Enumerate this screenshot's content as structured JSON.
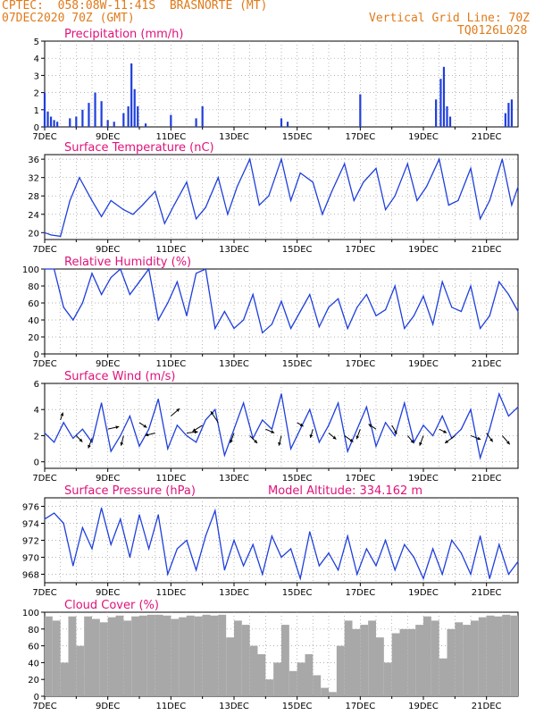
{
  "header": {
    "line1_left": "CPTEC:  058:08W-11:41S  BRASNORTE (MT)",
    "line2_left": "07DEC2020 70Z (GMT)",
    "line1_right": "Vertical Grid Line: 70Z",
    "line2_right": "TQ0126L028"
  },
  "colors": {
    "series": "#1f3fdc",
    "cloud": "#a8a8a8",
    "arrow": "#000000",
    "title": "#e0127a",
    "header": "#e07a1a"
  },
  "chart_data": [
    {
      "type": "bar",
      "title": "Precipitation (mm/h)",
      "xlabel": "",
      "ylabel": "",
      "x_range_days": [
        7,
        22
      ],
      "xticks": [
        "7DEC",
        "9DEC",
        "11DEC",
        "13DEC",
        "15DEC",
        "17DEC",
        "19DEC",
        "21DEC"
      ],
      "ylim": [
        0,
        5
      ],
      "yticks": [
        0,
        1,
        2,
        3,
        4,
        5
      ],
      "grid": true,
      "x": [
        7.0,
        7.1,
        7.2,
        7.3,
        7.4,
        7.8,
        8.0,
        8.2,
        8.4,
        8.6,
        8.8,
        9.0,
        9.2,
        9.5,
        9.65,
        9.75,
        9.85,
        9.95,
        10.2,
        11.0,
        11.8,
        12.0,
        14.5,
        14.7,
        17.0,
        19.4,
        19.55,
        19.65,
        19.75,
        19.85,
        21.6,
        21.7,
        21.8
      ],
      "values": [
        2.0,
        0.9,
        0.6,
        0.4,
        0.3,
        0.5,
        0.6,
        1.0,
        1.4,
        2.0,
        1.5,
        0.4,
        0.3,
        0.8,
        1.2,
        3.7,
        2.2,
        1.2,
        0.2,
        0.7,
        0.5,
        1.2,
        0.5,
        0.3,
        1.9,
        1.6,
        2.8,
        3.5,
        1.2,
        0.6,
        0.8,
        1.4,
        1.6
      ]
    },
    {
      "type": "line",
      "title": "Surface Temperature (nC)",
      "xlabel": "",
      "ylabel": "",
      "x_range_days": [
        7,
        22
      ],
      "xticks": [
        "7DEC",
        "9DEC",
        "11DEC",
        "13DEC",
        "15DEC",
        "17DEC",
        "19DEC",
        "21DEC"
      ],
      "ylim": [
        18.5,
        37
      ],
      "yticks": [
        20,
        24,
        28,
        32,
        36
      ],
      "grid": true,
      "x": [
        7.0,
        7.2,
        7.5,
        7.8,
        8.1,
        8.5,
        8.8,
        9.1,
        9.5,
        9.8,
        10.1,
        10.5,
        10.8,
        11.1,
        11.5,
        11.8,
        12.1,
        12.5,
        12.8,
        13.1,
        13.5,
        13.8,
        14.1,
        14.5,
        14.8,
        15.1,
        15.5,
        15.8,
        16.1,
        16.5,
        16.8,
        17.1,
        17.5,
        17.8,
        18.1,
        18.5,
        18.8,
        19.1,
        19.5,
        19.8,
        20.1,
        20.5,
        20.8,
        21.1,
        21.5,
        21.8,
        22.0
      ],
      "values": [
        20,
        19.5,
        19.2,
        27,
        32,
        27,
        23.5,
        27,
        25,
        24,
        26,
        29,
        22,
        26,
        31,
        23,
        25.5,
        32,
        24,
        30,
        36,
        26,
        28,
        36,
        27,
        33,
        31,
        24,
        29,
        35,
        27,
        31,
        34,
        25,
        28,
        35,
        27,
        30,
        36,
        26,
        27,
        34,
        23,
        27,
        36,
        26,
        30
      ]
    },
    {
      "type": "line",
      "title": "Relative Humidity (%)",
      "xlabel": "",
      "ylabel": "",
      "x_range_days": [
        7,
        22
      ],
      "xticks": [
        "7DEC",
        "9DEC",
        "11DEC",
        "13DEC",
        "15DEC",
        "17DEC",
        "19DEC",
        "21DEC"
      ],
      "ylim": [
        0,
        100
      ],
      "yticks": [
        0,
        20,
        40,
        60,
        80,
        100
      ],
      "grid": true,
      "x": [
        7.0,
        7.3,
        7.6,
        7.9,
        8.2,
        8.5,
        8.8,
        9.1,
        9.4,
        9.7,
        10.0,
        10.3,
        10.6,
        10.9,
        11.2,
        11.5,
        11.8,
        12.1,
        12.4,
        12.7,
        13.0,
        13.3,
        13.6,
        13.9,
        14.2,
        14.5,
        14.8,
        15.1,
        15.4,
        15.7,
        16.0,
        16.3,
        16.6,
        16.9,
        17.2,
        17.5,
        17.8,
        18.1,
        18.4,
        18.7,
        19.0,
        19.3,
        19.6,
        19.9,
        20.2,
        20.5,
        20.8,
        21.1,
        21.4,
        21.7,
        22.0
      ],
      "values": [
        100,
        100,
        55,
        40,
        60,
        95,
        70,
        90,
        100,
        70,
        85,
        100,
        40,
        60,
        85,
        45,
        95,
        100,
        30,
        50,
        30,
        40,
        70,
        25,
        35,
        62,
        30,
        50,
        70,
        32,
        55,
        65,
        30,
        55,
        70,
        45,
        52,
        80,
        30,
        45,
        68,
        35,
        85,
        55,
        50,
        80,
        30,
        45,
        85,
        70,
        50
      ]
    },
    {
      "type": "line",
      "title": "Surface Wind (m/s)",
      "xlabel": "",
      "ylabel": "",
      "x_range_days": [
        7,
        22
      ],
      "xticks": [
        "7DEC",
        "9DEC",
        "11DEC",
        "13DEC",
        "15DEC",
        "17DEC",
        "19DEC",
        "21DEC"
      ],
      "ylim": [
        -0.5,
        6
      ],
      "yticks": [
        0,
        2,
        4,
        6
      ],
      "grid": true,
      "x": [
        7.0,
        7.3,
        7.6,
        7.9,
        8.2,
        8.5,
        8.8,
        9.1,
        9.4,
        9.7,
        10.0,
        10.3,
        10.6,
        10.9,
        11.2,
        11.5,
        11.8,
        12.1,
        12.4,
        12.7,
        13.0,
        13.3,
        13.6,
        13.9,
        14.2,
        14.5,
        14.8,
        15.1,
        15.4,
        15.7,
        16.0,
        16.3,
        16.6,
        16.9,
        17.2,
        17.5,
        17.8,
        18.1,
        18.4,
        18.7,
        19.0,
        19.3,
        19.6,
        19.9,
        20.2,
        20.5,
        20.8,
        21.1,
        21.4,
        21.7,
        22.0
      ],
      "values": [
        2.2,
        1.5,
        3.0,
        1.8,
        2.5,
        1.5,
        4.5,
        0.8,
        2.0,
        3.5,
        1.2,
        2.5,
        4.8,
        1.0,
        2.8,
        2.0,
        1.5,
        3.2,
        4.0,
        0.5,
        2.5,
        4.5,
        1.8,
        3.2,
        2.5,
        5.2,
        1.0,
        2.5,
        4.0,
        1.5,
        2.8,
        4.5,
        0.8,
        2.5,
        4.2,
        1.2,
        3.0,
        2.0,
        4.5,
        1.5,
        2.8,
        2.0,
        3.5,
        1.8,
        2.5,
        4.0,
        0.3,
        2.5,
        5.2,
        3.5,
        4.2
      ],
      "arrows": {
        "x": [
          7.5,
          8.0,
          8.5,
          9.0,
          9.5,
          10.0,
          10.5,
          11.0,
          11.5,
          12.0,
          12.5,
          13.0,
          13.5,
          14.0,
          14.5,
          15.0,
          15.5,
          16.0,
          16.5,
          17.0,
          17.5,
          18.0,
          18.5,
          19.0,
          19.5,
          20.0,
          20.5,
          21.0,
          21.5
        ],
        "y": [
          3.2,
          2.0,
          1.8,
          2.5,
          2.0,
          3.0,
          2.2,
          3.5,
          2.2,
          2.8,
          3.0,
          2.2,
          2.0,
          2.5,
          2.0,
          3.0,
          2.5,
          2.2,
          2.0,
          2.5,
          2.5,
          2.8,
          2.0,
          2.0,
          2.5,
          2.0,
          2.0,
          2.2,
          2.0
        ],
        "u": [
          0.2,
          0.5,
          -0.3,
          0.9,
          -0.2,
          0.6,
          -0.8,
          0.7,
          0.9,
          -0.8,
          -0.6,
          -0.3,
          0.6,
          0.7,
          -0.2,
          0.5,
          -0.2,
          0.6,
          0.7,
          -0.3,
          -0.6,
          0.4,
          0.5,
          -0.3,
          0.6,
          -0.8,
          0.8,
          0.5,
          0.6
        ],
        "v": [
          0.6,
          -0.5,
          -0.8,
          0.2,
          -0.8,
          -0.4,
          -0.2,
          0.6,
          0.1,
          -0.5,
          0.9,
          -0.8,
          -0.6,
          -0.3,
          -0.8,
          -0.3,
          -0.7,
          -0.5,
          -0.5,
          -0.8,
          0.4,
          -0.7,
          -0.6,
          -0.8,
          -0.3,
          -0.6,
          -0.3,
          -0.7,
          -0.7
        ]
      }
    },
    {
      "type": "line",
      "title": "Surface Pressure (hPa)",
      "annotation": "Model Altitude: 334.162 m",
      "xlabel": "",
      "ylabel": "",
      "x_range_days": [
        7,
        22
      ],
      "xticks": [
        "7DEC",
        "9DEC",
        "11DEC",
        "13DEC",
        "15DEC",
        "17DEC",
        "19DEC",
        "21DEC"
      ],
      "ylim": [
        967,
        977
      ],
      "yticks": [
        968,
        970,
        972,
        974,
        976
      ],
      "grid": true,
      "x": [
        7.0,
        7.3,
        7.6,
        7.9,
        8.2,
        8.5,
        8.8,
        9.1,
        9.4,
        9.7,
        10.0,
        10.3,
        10.6,
        10.9,
        11.2,
        11.5,
        11.8,
        12.1,
        12.4,
        12.7,
        13.0,
        13.3,
        13.6,
        13.9,
        14.2,
        14.5,
        14.8,
        15.1,
        15.4,
        15.7,
        16.0,
        16.3,
        16.6,
        16.9,
        17.2,
        17.5,
        17.8,
        18.1,
        18.4,
        18.7,
        19.0,
        19.3,
        19.6,
        19.9,
        20.2,
        20.5,
        20.8,
        21.1,
        21.4,
        21.7,
        22.0
      ],
      "values": [
        974.5,
        975.2,
        974.0,
        969.0,
        973.5,
        971.0,
        975.8,
        971.5,
        974.5,
        970.0,
        975.0,
        971.0,
        975.0,
        968.0,
        971.0,
        972.0,
        968.5,
        972.5,
        975.5,
        968.5,
        972.0,
        969.0,
        971.5,
        968.0,
        972.5,
        970.0,
        971.0,
        967.5,
        973.0,
        969.0,
        970.5,
        968.5,
        972.5,
        968.0,
        971.0,
        969.0,
        972.0,
        968.5,
        971.5,
        970.0,
        967.5,
        971.0,
        968.0,
        972.0,
        970.5,
        968.0,
        972.5,
        967.5,
        971.5,
        968.0,
        969.5
      ]
    },
    {
      "type": "bar",
      "title": "Cloud Cover (%)",
      "xlabel": "",
      "ylabel": "",
      "x_range_days": [
        7,
        22
      ],
      "xticks": [
        "7DEC",
        "9DEC",
        "11DEC",
        "13DEC",
        "15DEC",
        "17DEC",
        "19DEC",
        "21DEC"
      ],
      "ylim": [
        0,
        100
      ],
      "yticks": [
        0,
        20,
        40,
        60,
        80,
        100
      ],
      "grid": true,
      "x": [
        7.0,
        7.25,
        7.5,
        7.75,
        8.0,
        8.25,
        8.5,
        8.75,
        9.0,
        9.25,
        9.5,
        9.75,
        10.0,
        10.25,
        10.5,
        10.75,
        11.0,
        11.25,
        11.5,
        11.75,
        12.0,
        12.25,
        12.5,
        12.75,
        13.0,
        13.25,
        13.5,
        13.75,
        14.0,
        14.25,
        14.5,
        14.75,
        15.0,
        15.25,
        15.5,
        15.75,
        16.0,
        16.25,
        16.5,
        16.75,
        17.0,
        17.25,
        17.5,
        17.75,
        18.0,
        18.25,
        18.5,
        18.75,
        19.0,
        19.25,
        19.5,
        19.75,
        20.0,
        20.25,
        20.5,
        20.75,
        21.0,
        21.25,
        21.5,
        21.75
      ],
      "values": [
        95,
        90,
        40,
        95,
        60,
        95,
        92,
        88,
        94,
        96,
        90,
        95,
        96,
        97,
        97,
        96,
        92,
        94,
        96,
        95,
        97,
        96,
        97,
        70,
        90,
        85,
        60,
        50,
        20,
        40,
        85,
        30,
        40,
        50,
        25,
        10,
        5,
        60,
        90,
        80,
        85,
        90,
        70,
        40,
        75,
        80,
        80,
        85,
        95,
        90,
        45,
        80,
        88,
        85,
        90,
        94,
        96,
        95,
        97,
        96
      ]
    }
  ]
}
